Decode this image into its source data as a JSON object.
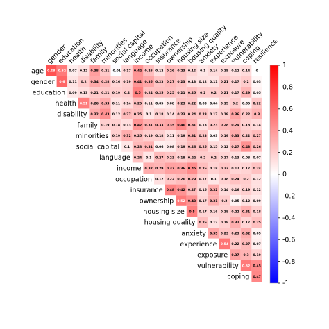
{
  "chart_data": {
    "type": "heatmap",
    "title": "",
    "variables": [
      "age",
      "gender",
      "education",
      "health",
      "disability",
      "family",
      "minorities",
      "social capital",
      "language",
      "income",
      "occupation",
      "insurance",
      "ownership",
      "housing size",
      "housing quality",
      "anxiety",
      "experience",
      "exposure",
      "vulnerability",
      "coping",
      "resilience"
    ],
    "matrix": [
      [
        0.68,
        0.52,
        0.07,
        0.12,
        0.38,
        0.21,
        -0.01,
        0.17,
        0.42,
        0.25,
        0.12,
        0.26,
        0.23,
        0.16,
        0.1,
        0.14,
        0.15,
        0.12,
        0.14,
        0
      ],
      [
        null,
        0.6,
        0.11,
        0.2,
        0.34,
        0.28,
        0.16,
        0.19,
        0.41,
        0.35,
        0.23,
        0.27,
        0.23,
        0.13,
        0.12,
        0.11,
        0.21,
        0.17,
        0.2,
        0.03
      ],
      [
        null,
        null,
        0.09,
        0.13,
        0.21,
        0.21,
        0.19,
        0.2,
        0.5,
        0.24,
        0.25,
        0.25,
        0.21,
        0.25,
        0.2,
        0.2,
        0.21,
        0.17,
        0.29,
        0.05
      ],
      [
        null,
        null,
        null,
        0.51,
        0.26,
        0.33,
        0.11,
        0.14,
        0.25,
        0.11,
        0.05,
        0.08,
        0.23,
        0.22,
        0.03,
        0.04,
        0.15,
        0.2,
        0.05,
        0.22
      ],
      [
        null,
        null,
        null,
        null,
        0.32,
        0.43,
        0.12,
        0.27,
        0.25,
        0.1,
        0.18,
        0.14,
        0.23,
        0.24,
        0.23,
        0.17,
        0.19,
        0.36,
        0.22,
        0.3
      ],
      [
        null,
        null,
        null,
        null,
        null,
        0.19,
        0.18,
        0.13,
        0.42,
        0.31,
        0.33,
        0.35,
        0.46,
        0.31,
        0.13,
        0.23,
        0.28,
        0.29,
        0.18,
        0.14
      ],
      [
        null,
        null,
        null,
        null,
        null,
        null,
        0.19,
        0.32,
        0.25,
        0.19,
        0.18,
        0.11,
        0.19,
        0.31,
        0.23,
        0.03,
        0.19,
        0.33,
        0.22,
        0.27
      ],
      [
        null,
        null,
        null,
        null,
        null,
        null,
        null,
        0.1,
        0.28,
        0.31,
        0.06,
        0.08,
        0.19,
        0.26,
        0.25,
        0.15,
        0.12,
        0.27,
        0.43,
        0.26
      ],
      [
        null,
        null,
        null,
        null,
        null,
        null,
        null,
        null,
        0.24,
        0.1,
        0.27,
        0.23,
        0.18,
        0.22,
        0.2,
        0.2,
        0.17,
        0.13,
        0.08,
        0.07
      ],
      [
        null,
        null,
        null,
        null,
        null,
        null,
        null,
        null,
        null,
        0.32,
        0.29,
        0.37,
        0.36,
        0.45,
        0.26,
        0.18,
        0.23,
        0.17,
        0.17,
        0.24
      ],
      [
        null,
        null,
        null,
        null,
        null,
        null,
        null,
        null,
        null,
        null,
        0.12,
        0.22,
        0.26,
        0.29,
        0.17,
        0.1,
        0.18,
        0.24,
        0.2,
        0.12
      ],
      [
        null,
        null,
        null,
        null,
        null,
        null,
        null,
        null,
        null,
        null,
        null,
        0.48,
        0.42,
        0.27,
        0.15,
        0.32,
        0.14,
        0.16,
        0.19,
        0.12
      ],
      [
        null,
        null,
        null,
        null,
        null,
        null,
        null,
        null,
        null,
        null,
        null,
        null,
        0.52,
        0.43,
        0.17,
        0.31,
        0.2,
        0.05,
        0.12,
        0.09
      ],
      [
        null,
        null,
        null,
        null,
        null,
        null,
        null,
        null,
        null,
        null,
        null,
        null,
        null,
        0.5,
        0.17,
        0.16,
        0.18,
        0.22,
        0.31,
        0.18
      ],
      [
        null,
        null,
        null,
        null,
        null,
        null,
        null,
        null,
        null,
        null,
        null,
        null,
        null,
        null,
        0.26,
        0.12,
        0.18,
        0.32,
        0.17,
        0.25
      ],
      [
        null,
        null,
        null,
        null,
        null,
        null,
        null,
        null,
        null,
        null,
        null,
        null,
        null,
        null,
        null,
        0.35,
        0.23,
        0.23,
        0.32,
        0.05
      ],
      [
        null,
        null,
        null,
        null,
        null,
        null,
        null,
        null,
        null,
        null,
        null,
        null,
        null,
        null,
        null,
        null,
        0.54,
        0.22,
        0.27,
        0.07
      ],
      [
        null,
        null,
        null,
        null,
        null,
        null,
        null,
        null,
        null,
        null,
        null,
        null,
        null,
        null,
        null,
        null,
        null,
        0.37,
        0.3,
        0.19
      ],
      [
        null,
        null,
        null,
        null,
        null,
        null,
        null,
        null,
        null,
        null,
        null,
        null,
        null,
        null,
        null,
        null,
        null,
        null,
        0.52,
        0.45
      ],
      [
        null,
        null,
        null,
        null,
        null,
        null,
        null,
        null,
        null,
        null,
        null,
        null,
        null,
        null,
        null,
        null,
        null,
        null,
        null,
        0.47
      ]
    ],
    "colorbar": {
      "ticks": [
        1,
        0.8,
        0.6,
        0.4,
        0.2,
        0,
        -0.2,
        -0.4,
        -0.6,
        -0.8,
        -1
      ],
      "tick_labels": [
        "1",
        "0.8",
        "0.6",
        "0.4",
        "0.2",
        "0",
        "-0.2",
        "-0.4",
        "-0.6",
        "-0.8",
        "-1"
      ],
      "range": [
        -1,
        1
      ],
      "colors": {
        "negative": "#0000ff",
        "neutral": "#ffffff",
        "positive": "#ff0000"
      }
    },
    "grid": false
  }
}
